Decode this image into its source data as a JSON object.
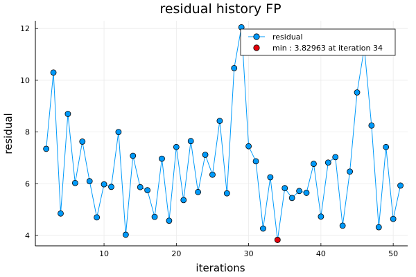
{
  "chart_data": {
    "type": "scatter",
    "title": "residual history FP",
    "xlabel": "iterations",
    "ylabel": "residual",
    "xlim": [
      0.5,
      52
    ],
    "ylim": [
      3.6,
      12.3
    ],
    "xticks": [
      10,
      20,
      30,
      40,
      50
    ],
    "yticks": [
      4,
      6,
      8,
      10,
      12
    ],
    "grid": true,
    "legend_position": "top-right",
    "colors": {
      "series": "#009AFA",
      "min": "#E5000B",
      "marker_edge": "#000000",
      "grid": "#EBEBEB"
    },
    "series": [
      {
        "name": "residual",
        "style": "line+markers",
        "x": [
          2,
          3,
          4,
          5,
          6,
          7,
          8,
          9,
          10,
          11,
          12,
          13,
          14,
          15,
          16,
          17,
          18,
          19,
          20,
          21,
          22,
          23,
          24,
          25,
          26,
          27,
          28,
          29,
          30,
          31,
          32,
          33,
          34,
          35,
          36,
          37,
          38,
          39,
          40,
          41,
          42,
          43,
          44,
          45,
          46,
          47,
          48,
          49,
          50,
          51
        ],
        "values": [
          7.35,
          10.3,
          4.85,
          8.7,
          6.03,
          7.63,
          6.1,
          4.7,
          5.98,
          5.88,
          8.0,
          4.03,
          7.08,
          5.87,
          5.75,
          4.72,
          6.97,
          4.57,
          7.42,
          5.37,
          7.65,
          5.68,
          7.12,
          6.35,
          8.43,
          5.63,
          10.47,
          12.05,
          7.45,
          6.87,
          4.27,
          6.25,
          3.83,
          5.83,
          5.45,
          5.72,
          5.65,
          6.77,
          4.73,
          6.82,
          7.03,
          4.38,
          6.47,
          9.53,
          11.25,
          8.25,
          4.32,
          7.42,
          4.64,
          5.93
        ]
      },
      {
        "name": "min : 3.82963 at iteration 34",
        "style": "markers",
        "x": [
          34
        ],
        "values": [
          3.82963
        ]
      }
    ]
  }
}
